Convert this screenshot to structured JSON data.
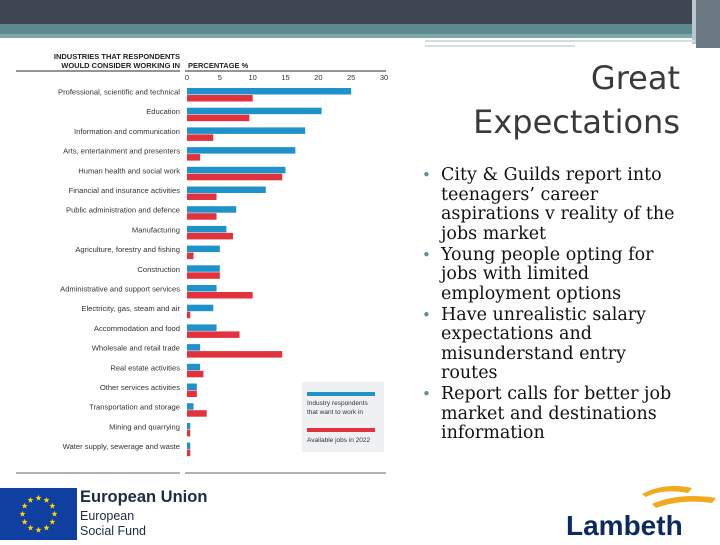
{
  "slide": {
    "title": "Great Expectations",
    "bullets": [
      "City & Guilds report into teenagers’ career aspirations v reality of the jobs market",
      "Young people opting for jobs with limited employment options",
      "Have unrealistic salary expectations and misunderstand entry routes",
      "Report calls for better job market and destinations information"
    ]
  },
  "chart_data": {
    "type": "bar",
    "orientation": "horizontal",
    "industry_header": "INDUSTRIES THAT RESPONDENTS WOULD CONSIDER WORKING IN",
    "industry_header_lines": [
      "INDUSTRIES THAT RESPONDENTS",
      "WOULD CONSIDER WORKING IN"
    ],
    "percentage_header": "PERCENTAGE %",
    "xlim": [
      0,
      30
    ],
    "ticks": [
      0,
      5,
      10,
      15,
      20,
      25,
      30
    ],
    "categories": [
      "Professional, scientific and technical",
      "Education",
      "Information and communication",
      "Arts, entertainment and presenters",
      "Human health and social work",
      "Financial and insurance activities",
      "Public administration and defence",
      "Manufacturing",
      "Agriculture, forestry and fishing",
      "Construction",
      "Administrative and support services",
      "Electricity, gas, steam and air",
      "Accommodation and food",
      "Wholesale and retail trade",
      "Real estate activities",
      "Other services activities",
      "Transportation and storage",
      "Mining and quarrying",
      "Water supply, sewerage and waste"
    ],
    "series": [
      {
        "name": "Industry respondents that want to work in",
        "legend_lines": [
          "Industry respondents",
          "that want to work in"
        ],
        "color": "#1f93c9",
        "values": [
          25,
          20.5,
          18,
          16.5,
          15,
          12,
          7.5,
          6,
          5,
          5,
          4.5,
          4,
          4.5,
          2,
          2,
          1.5,
          1,
          0.5,
          0.5
        ]
      },
      {
        "name": "Available jobs in 2022",
        "legend_lines": [
          "Available jobs in 2022"
        ],
        "color": "#e2323d",
        "values": [
          10,
          9.5,
          4,
          2,
          14.5,
          4.5,
          4.5,
          7,
          1,
          5,
          10,
          0.5,
          8,
          14.5,
          2.5,
          1.5,
          3,
          0.5,
          0.5
        ]
      }
    ]
  },
  "logos": {
    "eu_title": "European Union",
    "eu_line1": "European",
    "eu_line2": "Social Fund",
    "lambeth": "Lambeth",
    "colors": {
      "eu_blue": "#0f3fa0",
      "eu_star": "#ffd200",
      "lambeth_navy": "#0b2a5e",
      "lambeth_gold": "#f2a91c"
    }
  }
}
